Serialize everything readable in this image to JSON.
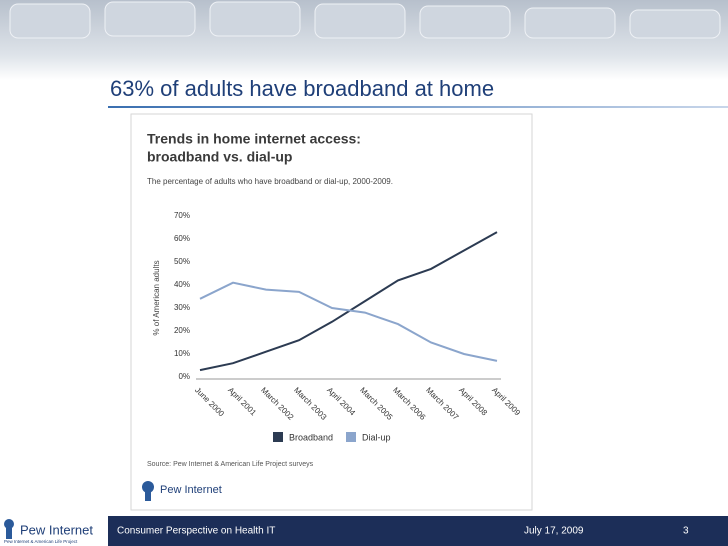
{
  "slide": {
    "title": "63% of adults have broadband at home",
    "footer_logo": "Pew Internet",
    "footer_logo_sub": "Pew Internet & American Life Project",
    "footer_text": "Consumer Perspective on Health IT",
    "date": "July 17, 2009",
    "page_number": "3"
  },
  "chart_data": {
    "type": "line",
    "title": "Trends in home internet access:",
    "title_line2": "broadband vs. dial-up",
    "subtitle": "The percentage of adults who have broadband or dial-up, 2000-2009.",
    "y_label": "% of American adults",
    "categories": [
      "June 2000",
      "April 2001",
      "March 2002",
      "March 2003",
      "April 2004",
      "March 2005",
      "March 2006",
      "March 2007",
      "April 2008",
      "April 2009"
    ],
    "series": [
      {
        "name": "Broadband",
        "color": "#2c3b52",
        "values": [
          3,
          6,
          11,
          16,
          24,
          33,
          42,
          47,
          55,
          63
        ]
      },
      {
        "name": "Dial-up",
        "color": "#8ba5cc",
        "values": [
          34,
          41,
          38,
          37,
          30,
          28,
          23,
          15,
          10,
          7
        ]
      }
    ],
    "ylim": [
      0,
      70
    ],
    "yticks": [
      {
        "value": 0,
        "label": "0%"
      },
      {
        "value": 10,
        "label": "10%"
      },
      {
        "value": 20,
        "label": "20%"
      },
      {
        "value": 30,
        "label": "30%"
      },
      {
        "value": 40,
        "label": "40%"
      },
      {
        "value": 50,
        "label": "50%"
      },
      {
        "value": 60,
        "label": "60%"
      },
      {
        "value": 70,
        "label": "70%"
      }
    ],
    "source": "Source: Pew Internet & American Life Project surveys",
    "logo": "Pew Internet"
  }
}
